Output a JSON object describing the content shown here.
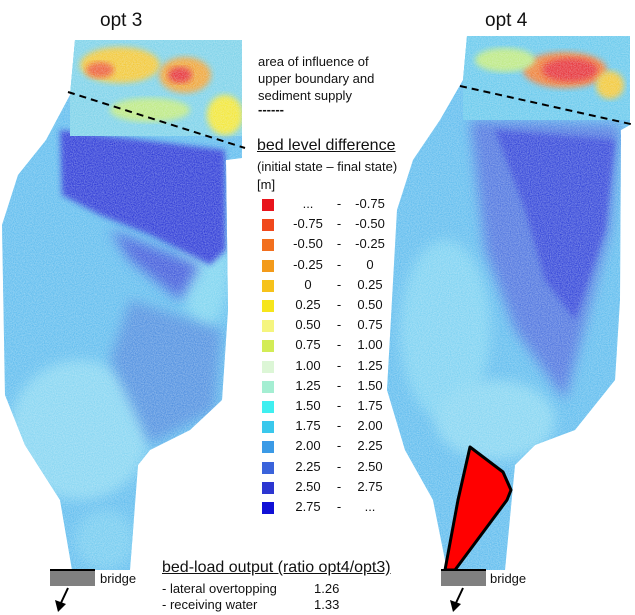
{
  "panels": [
    {
      "title": "opt 3",
      "has_red_zone": false
    },
    {
      "title": "opt 4",
      "has_red_zone": true
    }
  ],
  "note": {
    "lines": [
      "area of influence of",
      "upper boundary and",
      "sediment supply"
    ],
    "dashes": "------"
  },
  "legend": {
    "title": "bed level difference",
    "subtitle": "(initial state – final state)",
    "unit": "[m]",
    "items": [
      {
        "low": "...",
        "high": "-0.75",
        "color": "#e8141c"
      },
      {
        "low": "-0.75",
        "high": "-0.50",
        "color": "#f0481c"
      },
      {
        "low": "-0.50",
        "high": "-0.25",
        "color": "#f26f1e"
      },
      {
        "low": "-0.25",
        "high": "0",
        "color": "#f39a1a"
      },
      {
        "low": "0",
        "high": "0.25",
        "color": "#f6c21b"
      },
      {
        "low": "0.25",
        "high": "0.50",
        "color": "#f6e51c"
      },
      {
        "low": "0.50",
        "high": "0.75",
        "color": "#f5f57f"
      },
      {
        "low": "0.75",
        "high": "1.00",
        "color": "#d3ec56"
      },
      {
        "low": "1.00",
        "high": "1.25",
        "color": "#dcf6d6"
      },
      {
        "low": "1.25",
        "high": "1.50",
        "color": "#a4eed2"
      },
      {
        "low": "1.50",
        "high": "1.75",
        "color": "#3feff0"
      },
      {
        "low": "1.75",
        "high": "2.00",
        "color": "#3ac8ec"
      },
      {
        "low": "2.00",
        "high": "2.25",
        "color": "#3b9ae6"
      },
      {
        "low": "2.25",
        "high": "2.50",
        "color": "#3a63db"
      },
      {
        "low": "2.50",
        "high": "2.75",
        "color": "#2c36d1"
      },
      {
        "low": "2.75",
        "high": "...",
        "color": "#1010d6"
      }
    ]
  },
  "bed_load": {
    "title": "bed-load output (ratio opt4/opt3)",
    "rows": [
      {
        "label": "- lateral overtopping",
        "value": "1.26"
      },
      {
        "label": "- receiving water",
        "value": "1.33"
      }
    ]
  },
  "bridge_label": "bridge"
}
